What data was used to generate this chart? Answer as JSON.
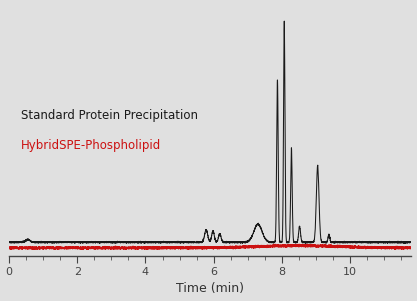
{
  "background_color": "#e0e0e0",
  "plot_bg_color": "#e0e0e0",
  "black_line_color": "#1a1a1a",
  "red_line_color": "#cc1111",
  "xlabel": "Time (min)",
  "xlabel_fontsize": 9,
  "xlim": [
    0,
    11.8
  ],
  "ylim": [
    -0.06,
    1.05
  ],
  "xticks": [
    0,
    2,
    4,
    6,
    8,
    10
  ],
  "label_standard": "Standard Protein Precipitation",
  "label_hybrid": "HybridSPE-Phospholipid",
  "label_standard_fontsize": 8.5,
  "label_hybrid_fontsize": 8.5,
  "baseline_black": 0.0,
  "baseline_red": -0.025
}
